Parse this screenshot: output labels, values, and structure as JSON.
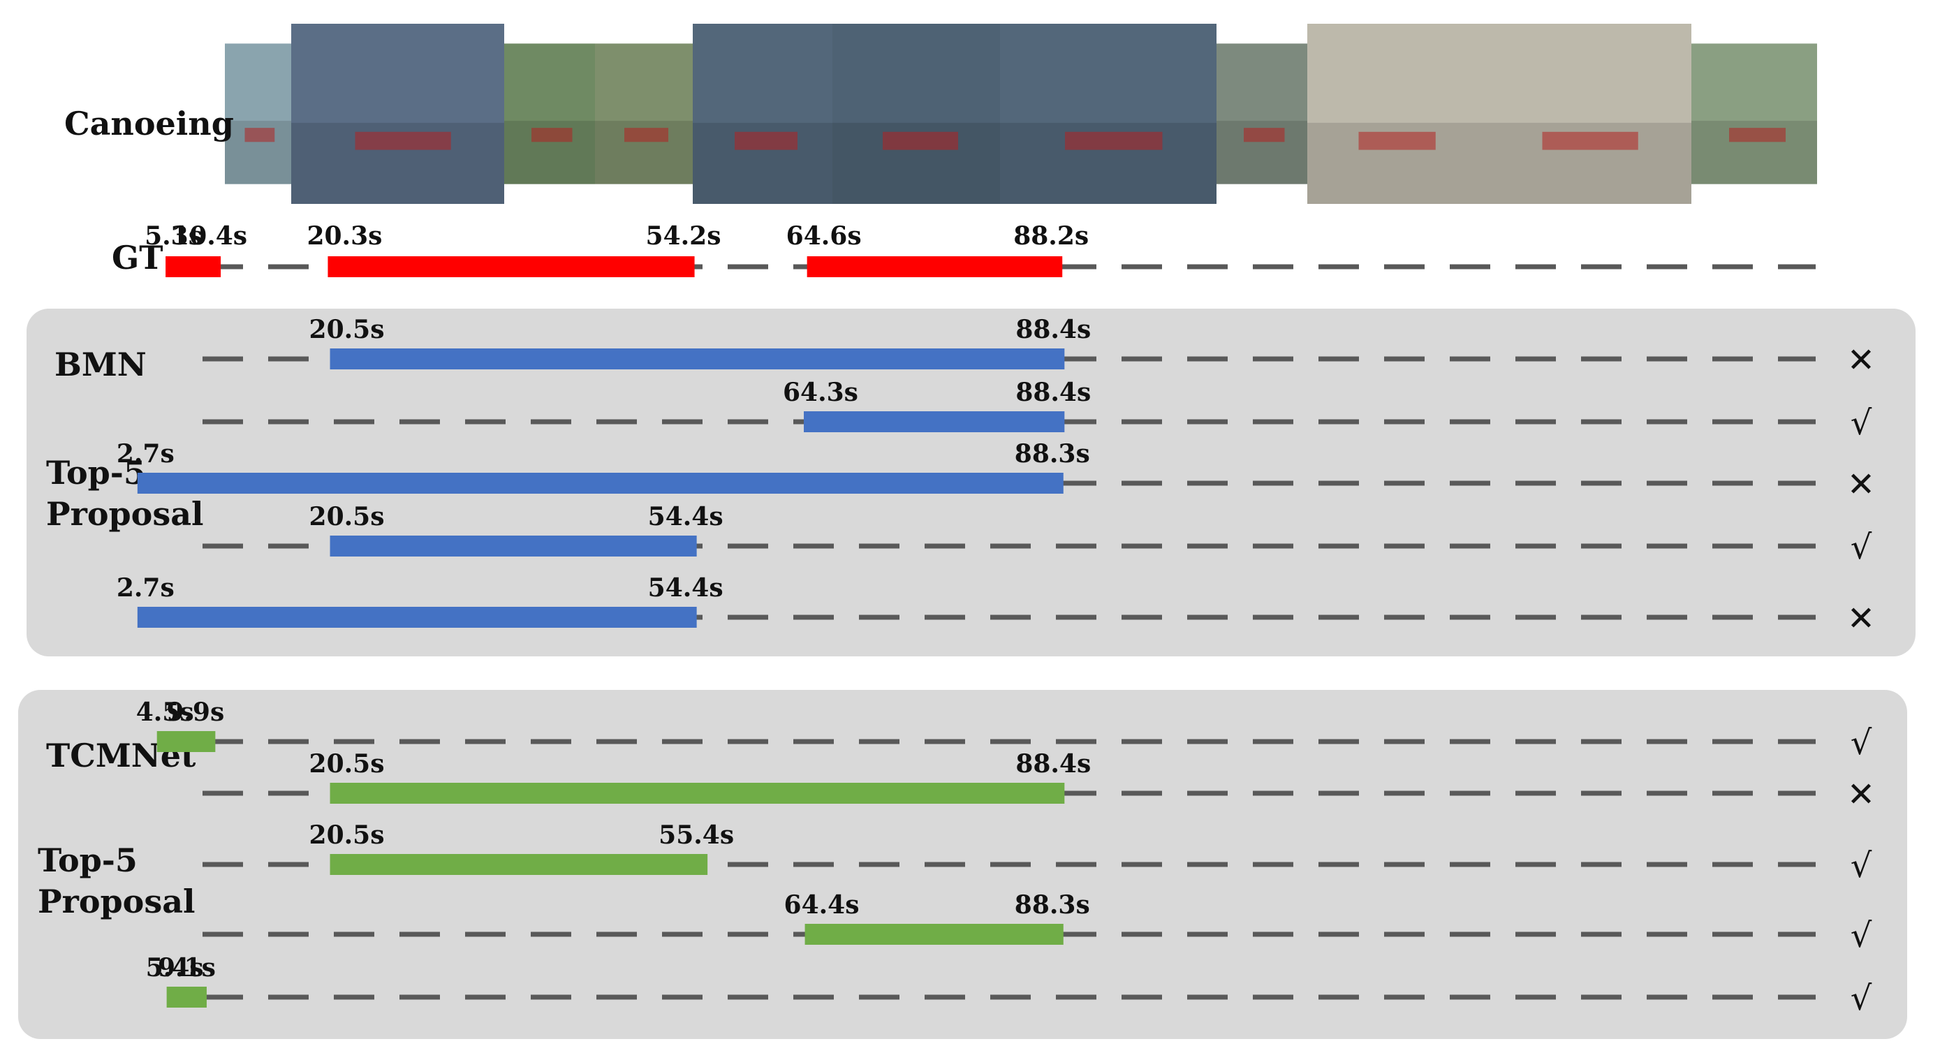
{
  "video": {
    "action_label": "Canoeing",
    "thumbnail_colors": [
      "#8aa4ae",
      "#5b6e86",
      "#6f8a63",
      "#7e8f6c",
      "#53677a",
      "#4e6274",
      "#53677a",
      "#7d8a7e",
      "#bdb9ab",
      "#bdb9ab",
      "#8a9f82"
    ],
    "thumbnail_heights": [
      0.78,
      1.0,
      0.78,
      0.78,
      1.0,
      1.0,
      1.0,
      0.78,
      1.0,
      1.0,
      0.78
    ]
  },
  "colors": {
    "gt": "#ff0000",
    "bmn": "#4472c4",
    "tcmnet": "#70ad47",
    "panel": "#d9d9d9",
    "dash": "#595959"
  },
  "timeline": {
    "min_s": 0,
    "max_s": 100
  },
  "gt": {
    "label": "GT",
    "segments": [
      {
        "start": 5.3,
        "end": 10.4,
        "start_label": "5.3s",
        "end_label": "10.4s"
      },
      {
        "start": 20.3,
        "end": 54.2,
        "start_label": "20.3s",
        "end_label": "54.2s"
      },
      {
        "start": 64.6,
        "end": 88.2,
        "start_label": "64.6s",
        "end_label": "88.2s"
      }
    ]
  },
  "panels": [
    {
      "name": "BMN",
      "subtitle_line1": "Top-5",
      "subtitle_line2": "Proposal",
      "color_key": "bmn",
      "proposals": [
        {
          "start": 20.5,
          "end": 88.4,
          "start_label": "20.5s",
          "end_label": "88.4s",
          "mark": "✕",
          "correct": false
        },
        {
          "start": 64.3,
          "end": 88.4,
          "start_label": "64.3s",
          "end_label": "88.4s",
          "mark": "√",
          "correct": true
        },
        {
          "start": 2.7,
          "end": 88.3,
          "start_label": "2.7s",
          "end_label": "88.3s",
          "mark": "✕",
          "correct": false
        },
        {
          "start": 20.5,
          "end": 54.4,
          "start_label": "20.5s",
          "end_label": "54.4s",
          "mark": "√",
          "correct": true
        },
        {
          "start": 2.7,
          "end": 54.4,
          "start_label": "2.7s",
          "end_label": "54.4s",
          "mark": "✕",
          "correct": false
        }
      ]
    },
    {
      "name": "TCMNet",
      "subtitle_line1": "Top-5",
      "subtitle_line2": "Proposal",
      "color_key": "tcmnet",
      "proposals": [
        {
          "start": 4.5,
          "end": 9.9,
          "start_label": "4.5s",
          "end_label": "9.9s",
          "mark": "√",
          "correct": true
        },
        {
          "start": 20.5,
          "end": 88.4,
          "start_label": "20.5s",
          "end_label": "88.4s",
          "mark": "✕",
          "correct": false
        },
        {
          "start": 20.5,
          "end": 55.4,
          "start_label": "20.5s",
          "end_label": "55.4s",
          "mark": "√",
          "correct": true
        },
        {
          "start": 64.4,
          "end": 88.3,
          "start_label": "64.4s",
          "end_label": "88.3s",
          "mark": "√",
          "correct": true
        },
        {
          "start": 5.4,
          "end": 9.1,
          "start_label": "5.4s",
          "end_label": "9.1s",
          "mark": "√",
          "correct": true
        }
      ]
    }
  ]
}
